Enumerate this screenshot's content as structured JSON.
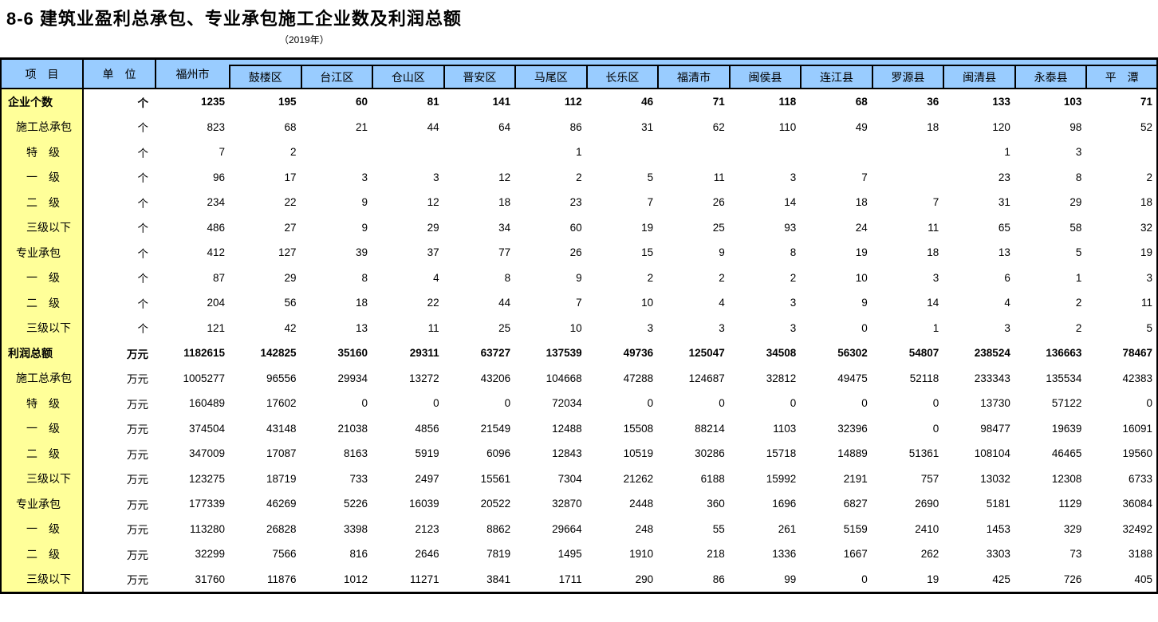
{
  "page": {
    "title": "8-6  建筑业盈利总承包、专业承包施工企业数及利润总额",
    "subtitle": "（2019年）"
  },
  "colors": {
    "header_bg": "#99CCFF",
    "label_bg": "#FFFF99",
    "border": "#000000"
  },
  "table": {
    "corner_header": "项　目",
    "unit_header": "单　位",
    "city_header": "福州市",
    "district_headers": [
      "鼓楼区",
      "台江区",
      "仓山区",
      "晋安区",
      "马尾区",
      "长乐区",
      "福清市",
      "闽侯县",
      "连江县",
      "罗源县",
      "闽清县",
      "永泰县",
      "平　潭"
    ],
    "rows": [
      {
        "label": "企业个数",
        "indent": 0,
        "bold": true,
        "unit": "个",
        "values": [
          "1235",
          "195",
          "60",
          "81",
          "141",
          "112",
          "46",
          "71",
          "118",
          "68",
          "36",
          "133",
          "103",
          "71"
        ]
      },
      {
        "label": "施工总承包",
        "indent": 1,
        "bold": false,
        "unit": "个",
        "values": [
          "823",
          "68",
          "21",
          "44",
          "64",
          "86",
          "31",
          "62",
          "110",
          "49",
          "18",
          "120",
          "98",
          "52"
        ]
      },
      {
        "label": "特　级",
        "indent": 2,
        "bold": false,
        "unit": "个",
        "values": [
          "7",
          "2",
          "",
          "",
          "",
          "1",
          "",
          "",
          "",
          "",
          "",
          "1",
          "3",
          ""
        ]
      },
      {
        "label": "一　级",
        "indent": 2,
        "bold": false,
        "unit": "个",
        "values": [
          "96",
          "17",
          "3",
          "3",
          "12",
          "2",
          "5",
          "11",
          "3",
          "7",
          "",
          "23",
          "8",
          "2"
        ]
      },
      {
        "label": "二　级",
        "indent": 2,
        "bold": false,
        "unit": "个",
        "values": [
          "234",
          "22",
          "9",
          "12",
          "18",
          "23",
          "7",
          "26",
          "14",
          "18",
          "7",
          "31",
          "29",
          "18"
        ]
      },
      {
        "label": "三级以下",
        "indent": 2,
        "bold": false,
        "unit": "个",
        "values": [
          "486",
          "27",
          "9",
          "29",
          "34",
          "60",
          "19",
          "25",
          "93",
          "24",
          "11",
          "65",
          "58",
          "32"
        ]
      },
      {
        "label": "专业承包",
        "indent": 1,
        "bold": false,
        "unit": "个",
        "values": [
          "412",
          "127",
          "39",
          "37",
          "77",
          "26",
          "15",
          "9",
          "8",
          "19",
          "18",
          "13",
          "5",
          "19"
        ]
      },
      {
        "label": "一　级",
        "indent": 2,
        "bold": false,
        "unit": "个",
        "values": [
          "87",
          "29",
          "8",
          "4",
          "8",
          "9",
          "2",
          "2",
          "2",
          "10",
          "3",
          "6",
          "1",
          "3"
        ]
      },
      {
        "label": "二　级",
        "indent": 2,
        "bold": false,
        "unit": "个",
        "values": [
          "204",
          "56",
          "18",
          "22",
          "44",
          "7",
          "10",
          "4",
          "3",
          "9",
          "14",
          "4",
          "2",
          "11"
        ]
      },
      {
        "label": "三级以下",
        "indent": 2,
        "bold": false,
        "unit": "个",
        "values": [
          "121",
          "42",
          "13",
          "11",
          "25",
          "10",
          "3",
          "3",
          "3",
          "0",
          "1",
          "3",
          "2",
          "5"
        ]
      },
      {
        "label": "利润总额",
        "indent": 0,
        "bold": true,
        "unit": "万元",
        "values": [
          "1182615",
          "142825",
          "35160",
          "29311",
          "63727",
          "137539",
          "49736",
          "125047",
          "34508",
          "56302",
          "54807",
          "238524",
          "136663",
          "78467"
        ]
      },
      {
        "label": "施工总承包",
        "indent": 1,
        "bold": false,
        "unit": "万元",
        "values": [
          "1005277",
          "96556",
          "29934",
          "13272",
          "43206",
          "104668",
          "47288",
          "124687",
          "32812",
          "49475",
          "52118",
          "233343",
          "135534",
          "42383"
        ]
      },
      {
        "label": "特　级",
        "indent": 2,
        "bold": false,
        "unit": "万元",
        "values": [
          "160489",
          "17602",
          "0",
          "0",
          "0",
          "72034",
          "0",
          "0",
          "0",
          "0",
          "0",
          "13730",
          "57122",
          "0"
        ]
      },
      {
        "label": "一　级",
        "indent": 2,
        "bold": false,
        "unit": "万元",
        "values": [
          "374504",
          "43148",
          "21038",
          "4856",
          "21549",
          "12488",
          "15508",
          "88214",
          "1103",
          "32396",
          "0",
          "98477",
          "19639",
          "16091"
        ]
      },
      {
        "label": "二　级",
        "indent": 2,
        "bold": false,
        "unit": "万元",
        "values": [
          "347009",
          "17087",
          "8163",
          "5919",
          "6096",
          "12843",
          "10519",
          "30286",
          "15718",
          "14889",
          "51361",
          "108104",
          "46465",
          "19560"
        ]
      },
      {
        "label": "三级以下",
        "indent": 2,
        "bold": false,
        "unit": "万元",
        "values": [
          "123275",
          "18719",
          "733",
          "2497",
          "15561",
          "7304",
          "21262",
          "6188",
          "15992",
          "2191",
          "757",
          "13032",
          "12308",
          "6733"
        ]
      },
      {
        "label": "专业承包",
        "indent": 1,
        "bold": false,
        "unit": "万元",
        "values": [
          "177339",
          "46269",
          "5226",
          "16039",
          "20522",
          "32870",
          "2448",
          "360",
          "1696",
          "6827",
          "2690",
          "5181",
          "1129",
          "36084"
        ]
      },
      {
        "label": "一　级",
        "indent": 2,
        "bold": false,
        "unit": "万元",
        "values": [
          "113280",
          "26828",
          "3398",
          "2123",
          "8862",
          "29664",
          "248",
          "55",
          "261",
          "5159",
          "2410",
          "1453",
          "329",
          "32492"
        ]
      },
      {
        "label": "二　级",
        "indent": 2,
        "bold": false,
        "unit": "万元",
        "values": [
          "32299",
          "7566",
          "816",
          "2646",
          "7819",
          "1495",
          "1910",
          "218",
          "1336",
          "1667",
          "262",
          "3303",
          "73",
          "3188"
        ]
      },
      {
        "label": "三级以下",
        "indent": 2,
        "bold": false,
        "unit": "万元",
        "values": [
          "31760",
          "11876",
          "1012",
          "11271",
          "3841",
          "1711",
          "290",
          "86",
          "99",
          "0",
          "19",
          "425",
          "726",
          "405"
        ]
      }
    ]
  }
}
